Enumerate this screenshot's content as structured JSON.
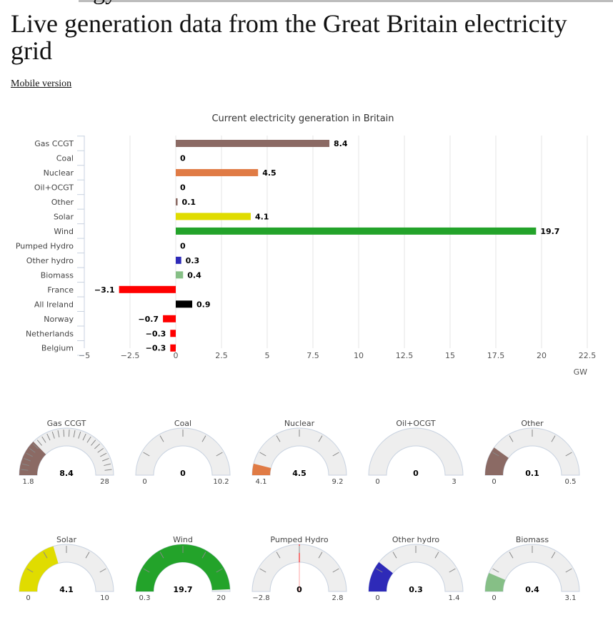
{
  "page": {
    "cut_title": "gy",
    "title": "Live generation data from the Great Britain electricity grid",
    "mobile_link": "Mobile version"
  },
  "chart_data": [
    {
      "type": "bar",
      "orientation": "horizontal",
      "title": "Current electricity generation in Britain",
      "xlabel": "GW",
      "xlim": [
        -5,
        22.5
      ],
      "xticks": [
        -5,
        -2.5,
        0,
        2.5,
        5,
        7.5,
        10,
        12.5,
        15,
        17.5,
        20,
        22.5
      ],
      "xtick_labels": [
        "−5",
        "−2.5",
        "0",
        "2.5",
        "5",
        "7.5",
        "10",
        "12.5",
        "15",
        "17.5",
        "20",
        "22.5"
      ],
      "grid": true,
      "categories": [
        "Gas CCGT",
        "Coal",
        "Nuclear",
        "Oil+OCGT",
        "Other",
        "Solar",
        "Wind",
        "Pumped Hydro",
        "Other hydro",
        "Biomass",
        "France",
        "All Ireland",
        "Norway",
        "Netherlands",
        "Belgium"
      ],
      "values": [
        8.4,
        0,
        4.5,
        0,
        0.1,
        4.1,
        19.7,
        0,
        0.3,
        0.4,
        -3.1,
        0.9,
        -0.7,
        -0.3,
        -0.3
      ],
      "value_labels": [
        "8.4",
        "0",
        "4.5",
        "0",
        "0.1",
        "4.1",
        "19.7",
        "0",
        "0.3",
        "0.4",
        "−3.1",
        "0.9",
        "−0.7",
        "−0.3",
        "−0.3"
      ],
      "colors": [
        "#8b6a64",
        "#000000",
        "#e07b45",
        "#d9d9d9",
        "#8b6a64",
        "#e0dc00",
        "#23a32a",
        "#d9d9d9",
        "#2e2ab8",
        "#86bf86",
        "#ff0000",
        "#000000",
        "#ff0000",
        "#ff0000",
        "#ff0000"
      ]
    },
    {
      "type": "gauge",
      "gauges": [
        {
          "name": "Gas CCGT",
          "value": 8.4,
          "min": 1.8,
          "max": 28,
          "value_label": "8.4",
          "min_label": "1.8",
          "max_label": "28",
          "color": "#8b6a64",
          "ticks": 25
        },
        {
          "name": "Coal",
          "value": 0,
          "min": 0,
          "max": 10.2,
          "value_label": "0",
          "min_label": "0",
          "max_label": "10.2",
          "color": "#000000",
          "ticks": 6
        },
        {
          "name": "Nuclear",
          "value": 4.5,
          "min": 4.1,
          "max": 9.2,
          "value_label": "4.5",
          "min_label": "4.1",
          "max_label": "9.2",
          "color": "#e07b45",
          "ticks": 6
        },
        {
          "name": "Oil+OCGT",
          "value": 0,
          "min": 0,
          "max": 3,
          "value_label": "0",
          "min_label": "0",
          "max_label": "3",
          "color": "#888888",
          "ticks": 0
        },
        {
          "name": "Other",
          "value": 0.1,
          "min": 0,
          "max": 0.5,
          "value_label": "0.1",
          "min_label": "0",
          "max_label": "0.5",
          "color": "#8b6a64",
          "ticks": 6
        },
        {
          "name": "Solar",
          "value": 4.1,
          "min": 0,
          "max": 10,
          "value_label": "4.1",
          "min_label": "0",
          "max_label": "10",
          "color": "#e0dc00",
          "ticks": 6
        },
        {
          "name": "Wind",
          "value": 19.7,
          "min": 0.3,
          "max": 20,
          "value_label": "19.7",
          "min_label": "0.3",
          "max_label": "20",
          "color": "#23a32a",
          "ticks": 6
        },
        {
          "name": "Pumped Hydro",
          "value": 0,
          "min": -2.8,
          "max": 2.8,
          "value_label": "0",
          "min_label": "−2.8",
          "max_label": "2.8",
          "color": "#ff0000",
          "ticks": 6,
          "marker_only": true
        },
        {
          "name": "Other hydro",
          "value": 0.3,
          "min": 0,
          "max": 1.4,
          "value_label": "0.3",
          "min_label": "0",
          "max_label": "1.4",
          "color": "#2e2ab8",
          "ticks": 6
        },
        {
          "name": "Biomass",
          "value": 0.4,
          "min": 0,
          "max": 3.1,
          "value_label": "0.4",
          "min_label": "0",
          "max_label": "3.1",
          "color": "#86bf86",
          "ticks": 6
        }
      ]
    }
  ]
}
